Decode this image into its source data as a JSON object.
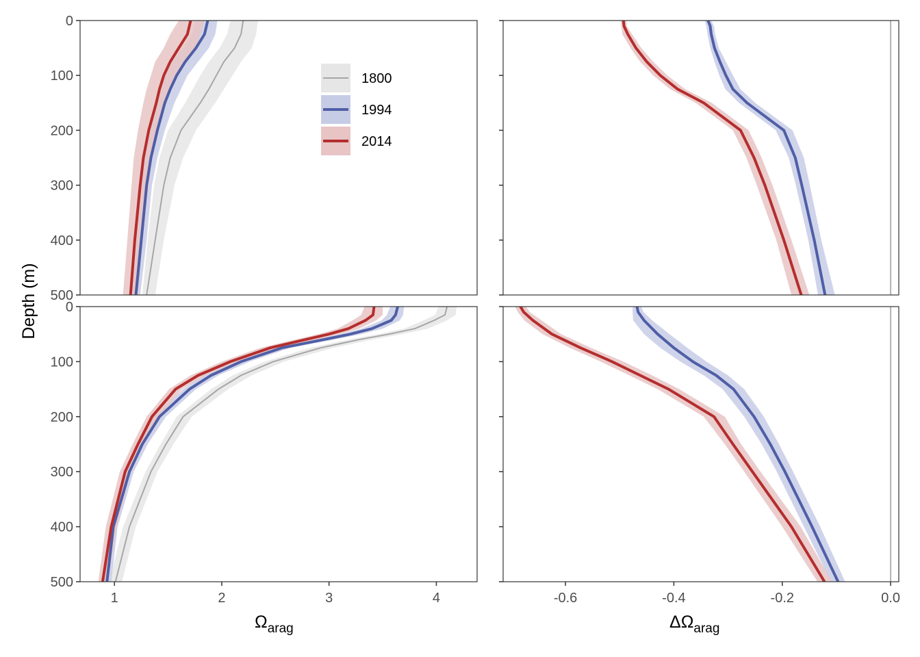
{
  "chart_data": [
    {
      "type": "line",
      "panel": "top-left",
      "xlim": [
        0.68,
        4.38
      ],
      "ylim": [
        0,
        500
      ],
      "y_reversed": true,
      "xticks": [],
      "yticks": [
        "0",
        "100",
        "200",
        "300",
        "400",
        "500"
      ],
      "legend_position": "top-right",
      "series": [
        {
          "name": "1800",
          "color": "#a6a6a6",
          "band_color": "#e6e6e6",
          "line_width": 2,
          "depth": [
            0,
            25,
            50,
            75,
            100,
            125,
            150,
            200,
            250,
            300,
            400,
            500
          ],
          "values": [
            2.2,
            2.18,
            2.12,
            2.02,
            1.95,
            1.88,
            1.8,
            1.62,
            1.52,
            1.46,
            1.38,
            1.3
          ],
          "lower": [
            2.08,
            2.05,
            1.98,
            1.88,
            1.8,
            1.73,
            1.66,
            1.5,
            1.42,
            1.37,
            1.31,
            1.26
          ],
          "upper": [
            2.34,
            2.32,
            2.28,
            2.18,
            2.1,
            2.02,
            1.94,
            1.76,
            1.64,
            1.56,
            1.46,
            1.38
          ]
        },
        {
          "name": "1994",
          "color": "#4f5ea6",
          "band_color": "#c7cce6",
          "line_width": 4,
          "depth": [
            0,
            25,
            50,
            75,
            100,
            125,
            150,
            200,
            250,
            300,
            400,
            500
          ],
          "values": [
            1.87,
            1.84,
            1.76,
            1.66,
            1.58,
            1.52,
            1.47,
            1.4,
            1.34,
            1.3,
            1.25,
            1.2
          ],
          "lower": [
            1.76,
            1.72,
            1.64,
            1.54,
            1.48,
            1.42,
            1.38,
            1.33,
            1.28,
            1.25,
            1.2,
            1.16
          ],
          "upper": [
            1.96,
            1.94,
            1.88,
            1.78,
            1.68,
            1.62,
            1.56,
            1.47,
            1.4,
            1.35,
            1.3,
            1.24
          ]
        },
        {
          "name": "2014",
          "color": "#b52d2d",
          "band_color": "#e8c4c4",
          "line_width": 4,
          "depth": [
            0,
            25,
            50,
            75,
            100,
            125,
            150,
            200,
            250,
            300,
            400,
            500
          ],
          "values": [
            1.71,
            1.68,
            1.6,
            1.52,
            1.46,
            1.42,
            1.39,
            1.32,
            1.27,
            1.24,
            1.19,
            1.15
          ],
          "lower": [
            1.6,
            1.52,
            1.46,
            1.38,
            1.34,
            1.3,
            1.27,
            1.22,
            1.18,
            1.16,
            1.12,
            1.08
          ],
          "upper": [
            1.84,
            1.8,
            1.76,
            1.66,
            1.58,
            1.52,
            1.48,
            1.4,
            1.35,
            1.32,
            1.26,
            1.22
          ]
        }
      ]
    },
    {
      "type": "line",
      "panel": "top-right",
      "xlim": [
        -0.715,
        0.015
      ],
      "ylim": [
        0,
        500
      ],
      "y_reversed": true,
      "xticks": [],
      "yticks": [],
      "zero_line": true,
      "series": [
        {
          "name": "1994",
          "color": "#4f5ea6",
          "band_color": "#c7cce6",
          "line_width": 4,
          "depth": [
            0,
            10,
            25,
            50,
            75,
            100,
            125,
            150,
            200,
            250,
            300,
            400,
            500
          ],
          "values": [
            -0.337,
            -0.333,
            -0.331,
            -0.325,
            -0.315,
            -0.304,
            -0.291,
            -0.265,
            -0.197,
            -0.176,
            -0.164,
            -0.141,
            -0.121
          ],
          "lower": [
            -0.343,
            -0.34,
            -0.338,
            -0.333,
            -0.325,
            -0.316,
            -0.305,
            -0.28,
            -0.212,
            -0.188,
            -0.175,
            -0.152,
            -0.134
          ],
          "upper": [
            -0.331,
            -0.326,
            -0.324,
            -0.317,
            -0.304,
            -0.291,
            -0.277,
            -0.25,
            -0.181,
            -0.16,
            -0.149,
            -0.128,
            -0.103
          ]
        },
        {
          "name": "2014",
          "color": "#b52d2d",
          "band_color": "#e8c4c4",
          "line_width": 4,
          "depth": [
            0,
            10,
            25,
            50,
            75,
            100,
            125,
            150,
            200,
            250,
            300,
            400,
            500
          ],
          "values": [
            -0.493,
            -0.492,
            -0.485,
            -0.47,
            -0.45,
            -0.425,
            -0.393,
            -0.345,
            -0.277,
            -0.252,
            -0.232,
            -0.197,
            -0.165
          ],
          "lower": [
            -0.498,
            -0.497,
            -0.495,
            -0.48,
            -0.462,
            -0.438,
            -0.407,
            -0.36,
            -0.291,
            -0.266,
            -0.247,
            -0.211,
            -0.183
          ],
          "upper": [
            -0.488,
            -0.487,
            -0.477,
            -0.46,
            -0.438,
            -0.412,
            -0.379,
            -0.33,
            -0.262,
            -0.238,
            -0.218,
            -0.183,
            -0.15
          ]
        }
      ]
    },
    {
      "type": "line",
      "panel": "bottom-left",
      "xlim": [
        0.68,
        4.38
      ],
      "ylim": [
        0,
        500
      ],
      "y_reversed": true,
      "xlabel": "Ωarag",
      "xticks": [
        "1",
        "2",
        "3",
        "4"
      ],
      "yticks": [
        "0",
        "100",
        "200",
        "300",
        "400",
        "500"
      ],
      "series": [
        {
          "name": "1800",
          "color": "#a6a6a6",
          "band_color": "#e6e6e6",
          "line_width": 2,
          "depth": [
            0,
            15,
            25,
            40,
            50,
            60,
            75,
            100,
            125,
            150,
            200,
            250,
            300,
            400,
            500
          ],
          "values": [
            4.1,
            4.08,
            3.98,
            3.8,
            3.56,
            3.28,
            2.92,
            2.48,
            2.18,
            1.97,
            1.64,
            1.48,
            1.34,
            1.14,
            1.01
          ],
          "lower": [
            4.02,
            3.99,
            3.88,
            3.7,
            3.46,
            3.18,
            2.82,
            2.4,
            2.1,
            1.9,
            1.58,
            1.43,
            1.29,
            1.08,
            0.95
          ],
          "upper": [
            4.19,
            4.18,
            4.1,
            3.92,
            3.68,
            3.4,
            3.04,
            2.58,
            2.28,
            2.06,
            1.72,
            1.55,
            1.4,
            1.2,
            1.07
          ]
        },
        {
          "name": "1994",
          "color": "#4f5ea6",
          "band_color": "#c7cce6",
          "line_width": 4,
          "depth": [
            0,
            15,
            25,
            40,
            50,
            60,
            75,
            100,
            125,
            150,
            200,
            250,
            300,
            400,
            500
          ],
          "values": [
            3.64,
            3.62,
            3.58,
            3.4,
            3.2,
            2.95,
            2.56,
            2.18,
            1.9,
            1.7,
            1.42,
            1.26,
            1.14,
            0.99,
            0.93
          ],
          "lower": [
            3.57,
            3.54,
            3.49,
            3.3,
            3.1,
            2.85,
            2.48,
            2.1,
            1.83,
            1.64,
            1.37,
            1.21,
            1.1,
            0.95,
            0.88
          ],
          "upper": [
            3.7,
            3.69,
            3.66,
            3.5,
            3.3,
            3.05,
            2.64,
            2.26,
            1.97,
            1.76,
            1.48,
            1.31,
            1.18,
            1.03,
            0.97
          ]
        },
        {
          "name": "2014",
          "color": "#b52d2d",
          "band_color": "#e8c4c4",
          "line_width": 4,
          "depth": [
            0,
            15,
            25,
            40,
            50,
            60,
            75,
            100,
            125,
            150,
            200,
            250,
            300,
            400,
            500
          ],
          "values": [
            3.42,
            3.41,
            3.34,
            3.18,
            3.0,
            2.78,
            2.45,
            2.08,
            1.78,
            1.57,
            1.35,
            1.22,
            1.1,
            0.97,
            0.89
          ],
          "lower": [
            3.33,
            3.3,
            3.22,
            3.08,
            2.9,
            2.68,
            2.36,
            2.0,
            1.71,
            1.51,
            1.3,
            1.17,
            1.05,
            0.92,
            0.85
          ],
          "upper": [
            3.5,
            3.5,
            3.44,
            3.28,
            3.1,
            2.88,
            2.54,
            2.16,
            1.85,
            1.63,
            1.41,
            1.27,
            1.15,
            1.02,
            0.94
          ]
        }
      ]
    },
    {
      "type": "line",
      "panel": "bottom-right",
      "xlim": [
        -0.715,
        0.015
      ],
      "ylim": [
        0,
        500
      ],
      "y_reversed": true,
      "xlabel": "ΔΩarag",
      "xticks": [
        "-0.6",
        "-0.4",
        "-0.2",
        "0.0"
      ],
      "yticks": [],
      "zero_line": true,
      "series": [
        {
          "name": "1994",
          "color": "#4f5ea6",
          "band_color": "#c7cce6",
          "line_width": 4,
          "depth": [
            0,
            10,
            25,
            50,
            75,
            100,
            125,
            150,
            200,
            250,
            300,
            400,
            500
          ],
          "values": [
            -0.468,
            -0.466,
            -0.455,
            -0.43,
            -0.4,
            -0.365,
            -0.322,
            -0.29,
            -0.252,
            -0.222,
            -0.195,
            -0.145,
            -0.097
          ],
          "lower": [
            -0.476,
            -0.476,
            -0.475,
            -0.455,
            -0.425,
            -0.388,
            -0.345,
            -0.31,
            -0.27,
            -0.238,
            -0.21,
            -0.16,
            -0.11
          ],
          "upper": [
            -0.46,
            -0.456,
            -0.44,
            -0.408,
            -0.375,
            -0.34,
            -0.3,
            -0.27,
            -0.234,
            -0.206,
            -0.18,
            -0.13,
            -0.084
          ]
        },
        {
          "name": "2014",
          "color": "#b52d2d",
          "band_color": "#e8c4c4",
          "line_width": 4,
          "depth": [
            0,
            10,
            25,
            50,
            75,
            100,
            125,
            150,
            200,
            250,
            300,
            400,
            500
          ],
          "values": [
            -0.683,
            -0.677,
            -0.66,
            -0.625,
            -0.572,
            -0.514,
            -0.462,
            -0.41,
            -0.326,
            -0.291,
            -0.255,
            -0.183,
            -0.122
          ],
          "lower": [
            -0.693,
            -0.688,
            -0.676,
            -0.642,
            -0.592,
            -0.535,
            -0.482,
            -0.43,
            -0.345,
            -0.306,
            -0.27,
            -0.2,
            -0.135
          ],
          "upper": [
            -0.673,
            -0.666,
            -0.644,
            -0.608,
            -0.553,
            -0.493,
            -0.44,
            -0.39,
            -0.306,
            -0.276,
            -0.24,
            -0.166,
            -0.108
          ]
        }
      ]
    }
  ],
  "ylabel": "Depth (m)",
  "xlabel_left": {
    "main": "Ω",
    "sub": "arag"
  },
  "xlabel_right": {
    "main": "ΔΩ",
    "sub": "arag"
  },
  "legend": [
    {
      "label": "1800",
      "color": "#a6a6a6",
      "band_color": "#e6e6e6"
    },
    {
      "label": "1994",
      "color": "#4f5ea6",
      "band_color": "#c7cce6"
    },
    {
      "label": "2014",
      "color": "#b52d2d",
      "band_color": "#e8c4c4"
    }
  ],
  "zero_line_color": "#b3b3b3"
}
